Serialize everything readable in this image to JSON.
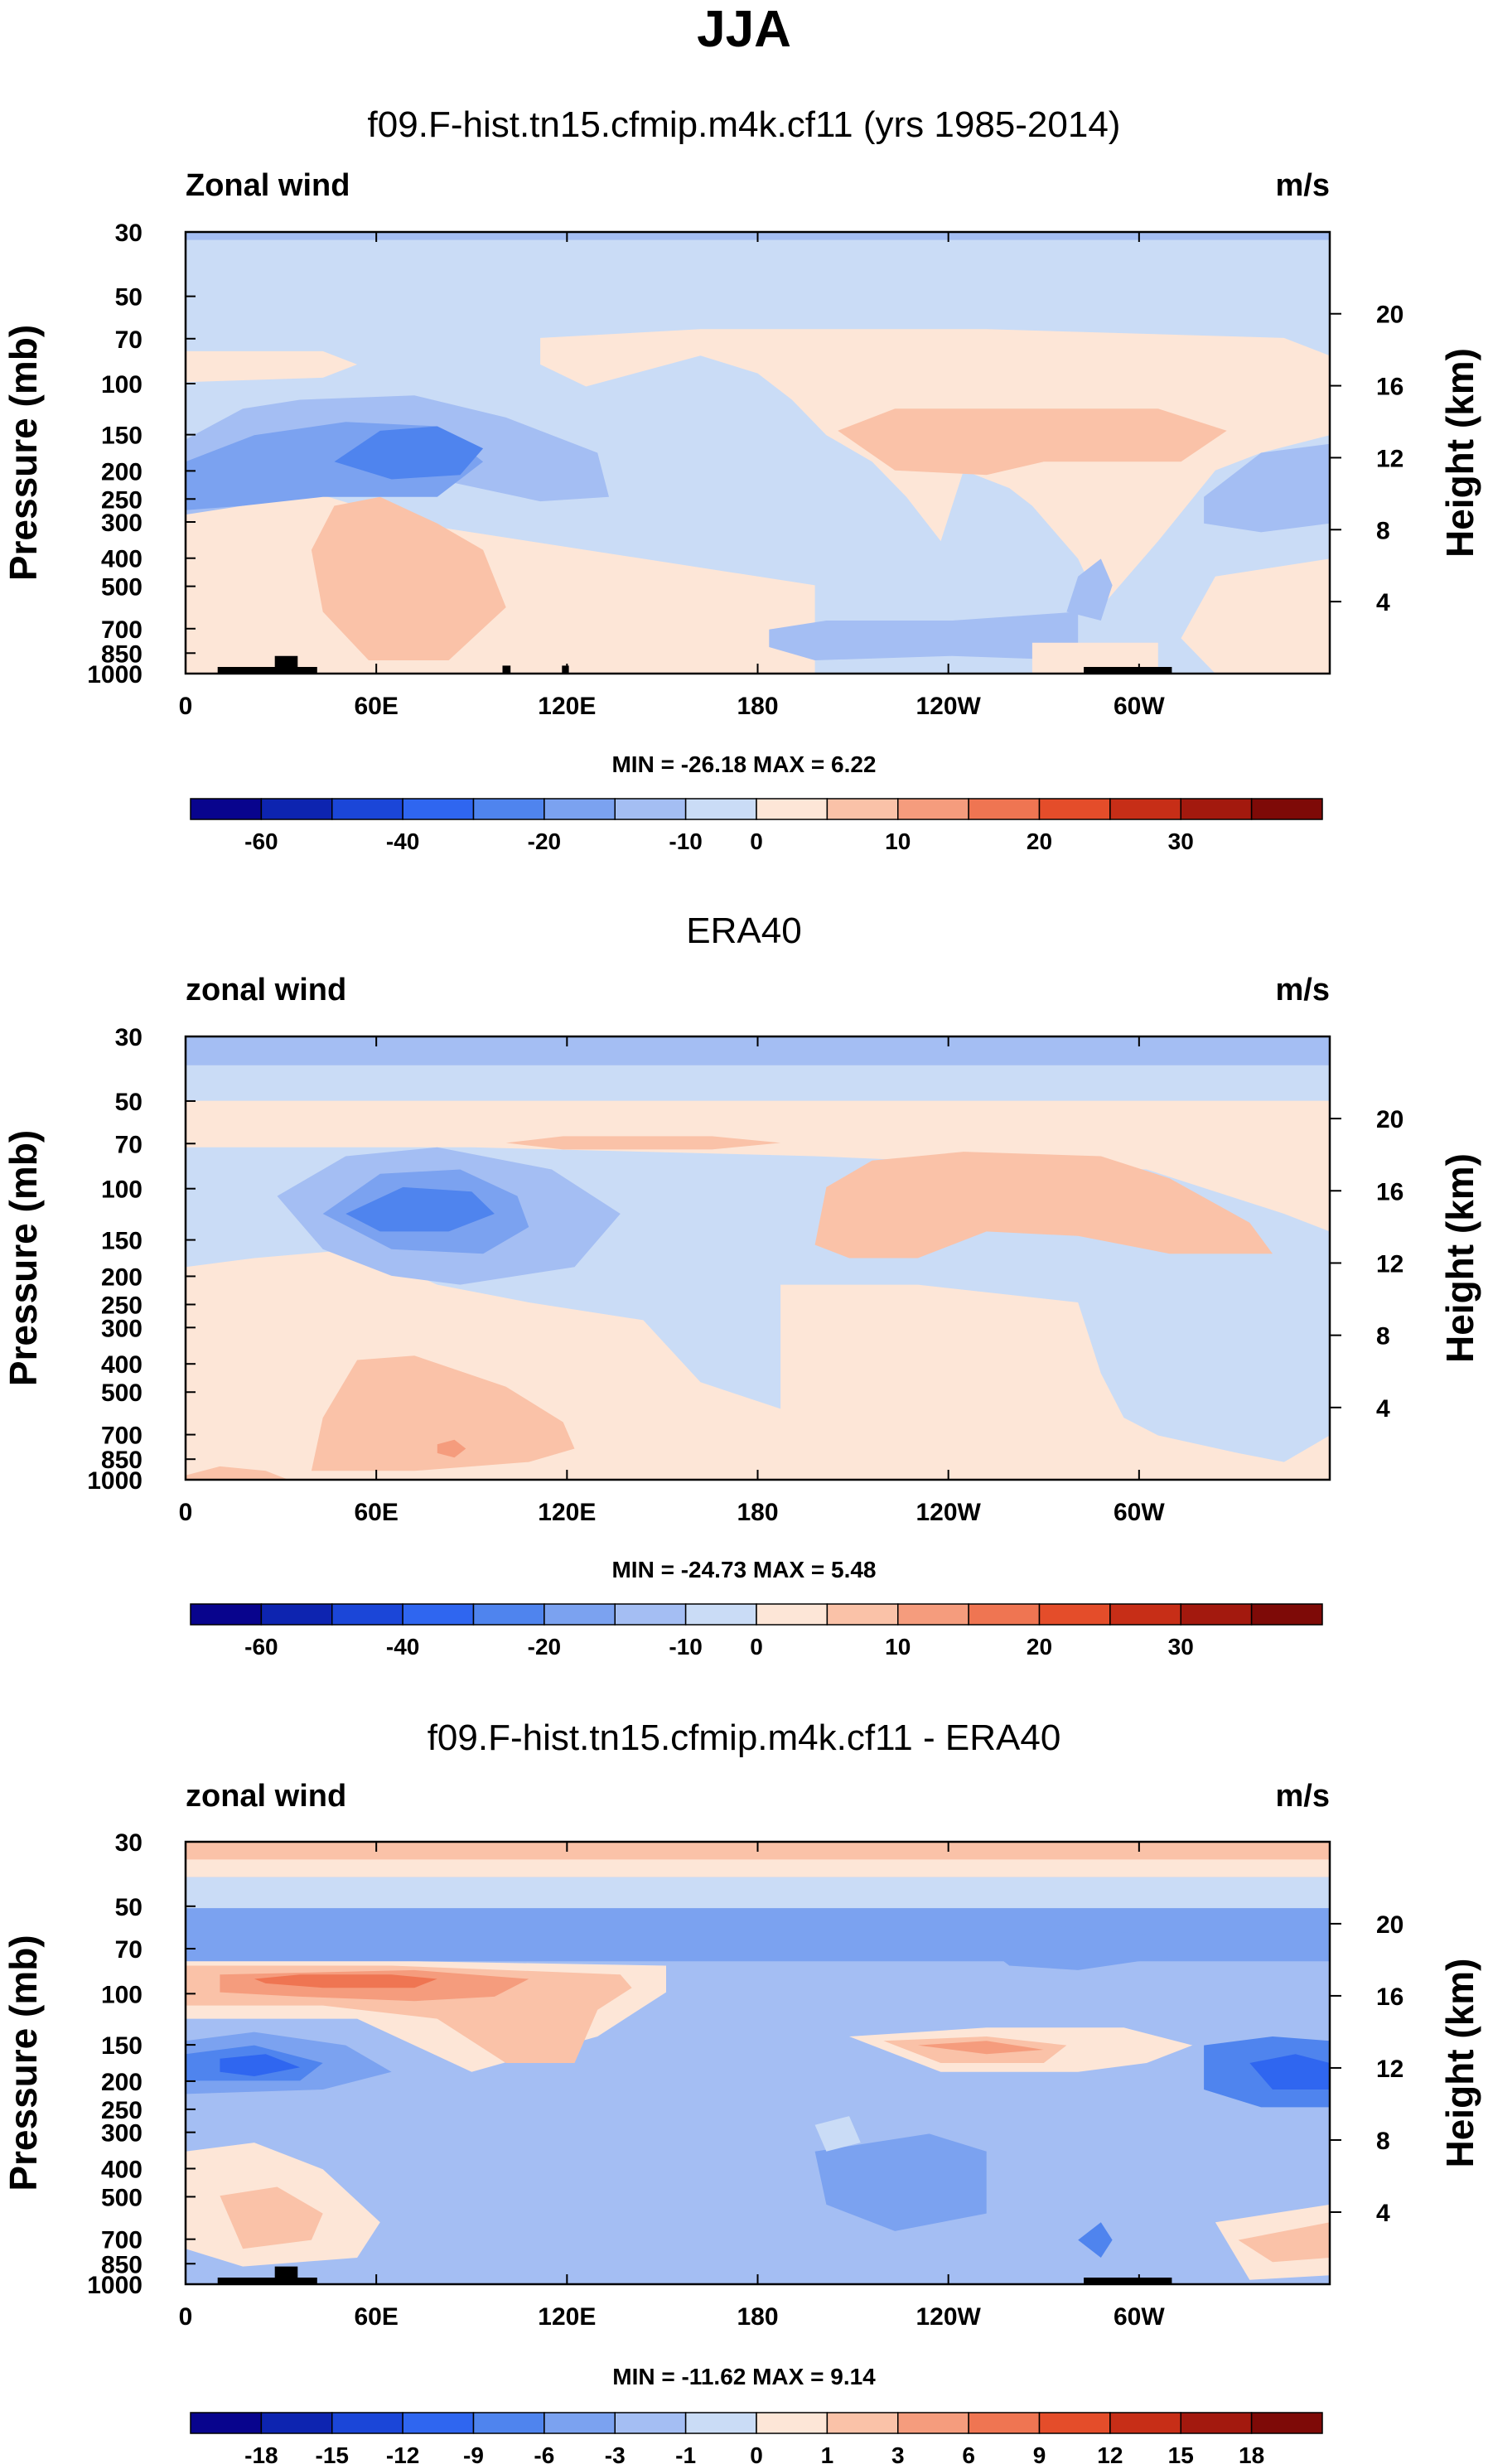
{
  "figure": {
    "title": "JJA"
  },
  "chart_data": [
    {
      "type": "contour",
      "subtitle": "f09.F-hist.tn15.cfmip.m4k.cf11 (yrs 1985-2014)",
      "left_label": "Zonal wind",
      "right_label": "m/s",
      "ylabel": "Pressure (mb)",
      "y2label": "Height (km)",
      "x_ticks": [
        "0",
        "60E",
        "120E",
        "180",
        "120W",
        "60W"
      ],
      "x_tick_values": [
        0,
        60,
        120,
        180,
        240,
        300
      ],
      "xlim": [
        0,
        360
      ],
      "y_ticks": [
        "30",
        "50",
        "70",
        "100",
        "150",
        "200",
        "250",
        "300",
        "400",
        "500",
        "700",
        "850",
        "1000"
      ],
      "y_tick_values": [
        30,
        50,
        70,
        100,
        150,
        200,
        250,
        300,
        400,
        500,
        700,
        850,
        1000
      ],
      "ylim": [
        1000,
        30
      ],
      "height_ticks": [
        "20",
        "16",
        "12",
        "8",
        "4"
      ],
      "height_tick_values": [
        20,
        16,
        12,
        8,
        4
      ],
      "stats": {
        "min_label": "MIN =",
        "min": "-26.18",
        "max_label": "MAX =",
        "max": "6.22"
      },
      "colorbar": {
        "labels": [
          "-60",
          "-40",
          "-20",
          "-10",
          "0",
          "10",
          "20",
          "30"
        ],
        "label_boundary_index": [
          1,
          3,
          5,
          7,
          8,
          10,
          12,
          14
        ],
        "colors": [
          "#08048d",
          "#0d24b0",
          "#1b46d8",
          "#2f66f0",
          "#4f84ee",
          "#7ba2f0",
          "#a4bef3",
          "#cadcf6",
          "#fde6d7",
          "#fac2a8",
          "#f59c7d",
          "#ef7552",
          "#e44d2a",
          "#c72e17",
          "#a3190e",
          "#7e0a07"
        ]
      },
      "regions": [
        {
          "name": "lower-west-positive",
          "value": 3
        },
        {
          "name": "upper-east-positive",
          "value": 5
        },
        {
          "name": "jet-core-negative",
          "value": -20
        },
        {
          "name": "jet-band-negative",
          "value": -10
        }
      ]
    },
    {
      "type": "contour",
      "subtitle": "ERA40",
      "left_label": "zonal wind",
      "right_label": "m/s",
      "ylabel": "Pressure (mb)",
      "y2label": "Height (km)",
      "x_ticks": [
        "0",
        "60E",
        "120E",
        "180",
        "120W",
        "60W"
      ],
      "x_tick_values": [
        0,
        60,
        120,
        180,
        240,
        300
      ],
      "xlim": [
        0,
        360
      ],
      "y_ticks": [
        "30",
        "50",
        "70",
        "100",
        "150",
        "200",
        "250",
        "300",
        "400",
        "500",
        "700",
        "850",
        "1000"
      ],
      "y_tick_values": [
        30,
        50,
        70,
        100,
        150,
        200,
        250,
        300,
        400,
        500,
        700,
        850,
        1000
      ],
      "ylim": [
        1000,
        30
      ],
      "height_ticks": [
        "20",
        "16",
        "12",
        "8",
        "4"
      ],
      "height_tick_values": [
        20,
        16,
        12,
        8,
        4
      ],
      "stats": {
        "min_label": "MIN =",
        "min": "-24.73",
        "max_label": "MAX =",
        "max": "5.48"
      },
      "colorbar": {
        "labels": [
          "-60",
          "-40",
          "-20",
          "-10",
          "0",
          "10",
          "20",
          "30"
        ],
        "label_boundary_index": [
          1,
          3,
          5,
          7,
          8,
          10,
          12,
          14
        ],
        "colors": [
          "#08048d",
          "#0d24b0",
          "#1b46d8",
          "#2f66f0",
          "#4f84ee",
          "#7ba2f0",
          "#a4bef3",
          "#cadcf6",
          "#fde6d7",
          "#fac2a8",
          "#f59c7d",
          "#ef7552",
          "#e44d2a",
          "#c72e17",
          "#a3190e",
          "#7e0a07"
        ]
      },
      "regions": [
        {
          "name": "easterly-band-70mb",
          "value": 3
        },
        {
          "name": "subtropical-jet-core",
          "value": -24.73
        },
        {
          "name": "western-hemisphere-positive",
          "value": 5
        }
      ]
    },
    {
      "type": "contour",
      "subtitle": "f09.F-hist.tn15.cfmip.m4k.cf11 - ERA40",
      "left_label": "zonal wind",
      "right_label": "m/s",
      "ylabel": "Pressure (mb)",
      "y2label": "Height (km)",
      "x_ticks": [
        "0",
        "60E",
        "120E",
        "180",
        "120W",
        "60W"
      ],
      "x_tick_values": [
        0,
        60,
        120,
        180,
        240,
        300
      ],
      "xlim": [
        0,
        360
      ],
      "y_ticks": [
        "30",
        "50",
        "70",
        "100",
        "150",
        "200",
        "250",
        "300",
        "400",
        "500",
        "700",
        "850",
        "1000"
      ],
      "y_tick_values": [
        30,
        50,
        70,
        100,
        150,
        200,
        250,
        300,
        400,
        500,
        700,
        850,
        1000
      ],
      "ylim": [
        1000,
        30
      ],
      "height_ticks": [
        "20",
        "16",
        "12",
        "8",
        "4"
      ],
      "height_tick_values": [
        20,
        16,
        12,
        8,
        4
      ],
      "stats": {
        "min_label": "MIN =",
        "min": "-11.62",
        "max_label": "MAX =",
        "max": "9.14"
      },
      "colorbar": {
        "labels": [
          "-18",
          "-15",
          "-12",
          "-9",
          "-6",
          "-3",
          "-1",
          "0",
          "1",
          "3",
          "6",
          "9",
          "12",
          "15",
          "18"
        ],
        "label_boundary_index": [
          1,
          2,
          3,
          4,
          5,
          6,
          7,
          8,
          9,
          10,
          11,
          12,
          13,
          14,
          15
        ],
        "colors": [
          "#08048d",
          "#0d24b0",
          "#1b46d8",
          "#2f66f0",
          "#4f84ee",
          "#7ba2f0",
          "#a4bef3",
          "#cadcf6",
          "#fde6d7",
          "#fac2a8",
          "#f59c7d",
          "#ef7552",
          "#e44d2a",
          "#c72e17",
          "#a3190e",
          "#7e0a07"
        ]
      },
      "regions": [
        {
          "name": "top-positive-band",
          "value": 3
        },
        {
          "name": "upper-positive-core",
          "value": 9.14
        },
        {
          "name": "westerly-negative-core",
          "value": -11.62
        }
      ]
    }
  ]
}
